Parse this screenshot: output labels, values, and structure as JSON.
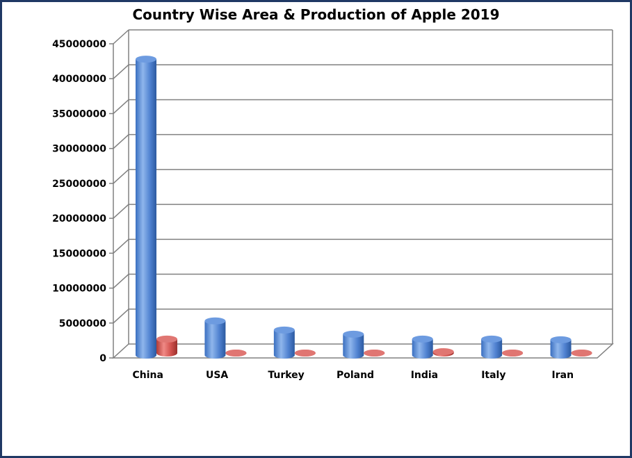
{
  "chart_data": {
    "type": "bar",
    "title": "Country Wise Area & Production of Apple 2019",
    "categories": [
      "China",
      "USA",
      "Turkey",
      "Poland",
      "India",
      "Italy",
      "Iran"
    ],
    "series": [
      {
        "values": [
          42400000,
          4900000,
          3600000,
          3000000,
          2300000,
          2300000,
          2200000
        ]
      },
      {
        "values": [
          2000000,
          0,
          0,
          0,
          200000,
          0,
          0
        ]
      }
    ],
    "ylim": [
      0,
      45000000
    ],
    "yticks": [
      0,
      5000000,
      10000000,
      15000000,
      20000000,
      25000000,
      30000000,
      35000000,
      40000000,
      45000000
    ],
    "grid": true,
    "colors": [
      "#4f81bd",
      "#c0504d"
    ]
  }
}
